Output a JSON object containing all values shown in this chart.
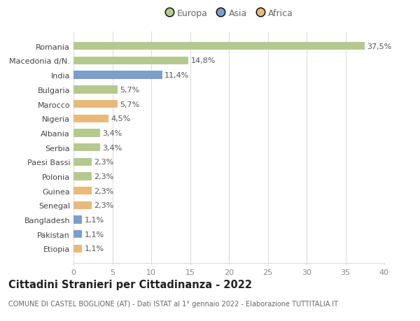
{
  "countries": [
    "Romania",
    "Macedonia d/N.",
    "India",
    "Bulgaria",
    "Marocco",
    "Nigeria",
    "Albania",
    "Serbia",
    "Paesi Bassi",
    "Polonia",
    "Guinea",
    "Senegal",
    "Bangladesh",
    "Pakistan",
    "Etiopia"
  ],
  "values": [
    37.5,
    14.8,
    11.4,
    5.7,
    5.7,
    4.5,
    3.4,
    3.4,
    2.3,
    2.3,
    2.3,
    2.3,
    1.1,
    1.1,
    1.1
  ],
  "labels": [
    "37,5%",
    "14,8%",
    "11,4%",
    "5,7%",
    "5,7%",
    "4,5%",
    "3,4%",
    "3,4%",
    "2,3%",
    "2,3%",
    "2,3%",
    "2,3%",
    "1,1%",
    "1,1%",
    "1,1%"
  ],
  "continents": [
    "Europa",
    "Europa",
    "Asia",
    "Europa",
    "Africa",
    "Africa",
    "Europa",
    "Europa",
    "Europa",
    "Europa",
    "Africa",
    "Africa",
    "Asia",
    "Asia",
    "Africa"
  ],
  "colors": {
    "Europa": "#b5c98e",
    "Asia": "#7b9fcc",
    "Africa": "#e8b97a"
  },
  "title": "Cittadini Stranieri per Cittadinanza - 2022",
  "subtitle": "COMUNE DI CASTEL BOGLIONE (AT) - Dati ISTAT al 1° gennaio 2022 - Elaborazione TUTTITALIA.IT",
  "xlim": [
    0,
    40
  ],
  "xticks": [
    0,
    5,
    10,
    15,
    20,
    25,
    30,
    35,
    40
  ],
  "background_color": "#ffffff",
  "grid_color": "#dddddd",
  "bar_height": 0.55,
  "label_fontsize": 8,
  "tick_fontsize": 8,
  "title_fontsize": 10.5,
  "subtitle_fontsize": 7
}
